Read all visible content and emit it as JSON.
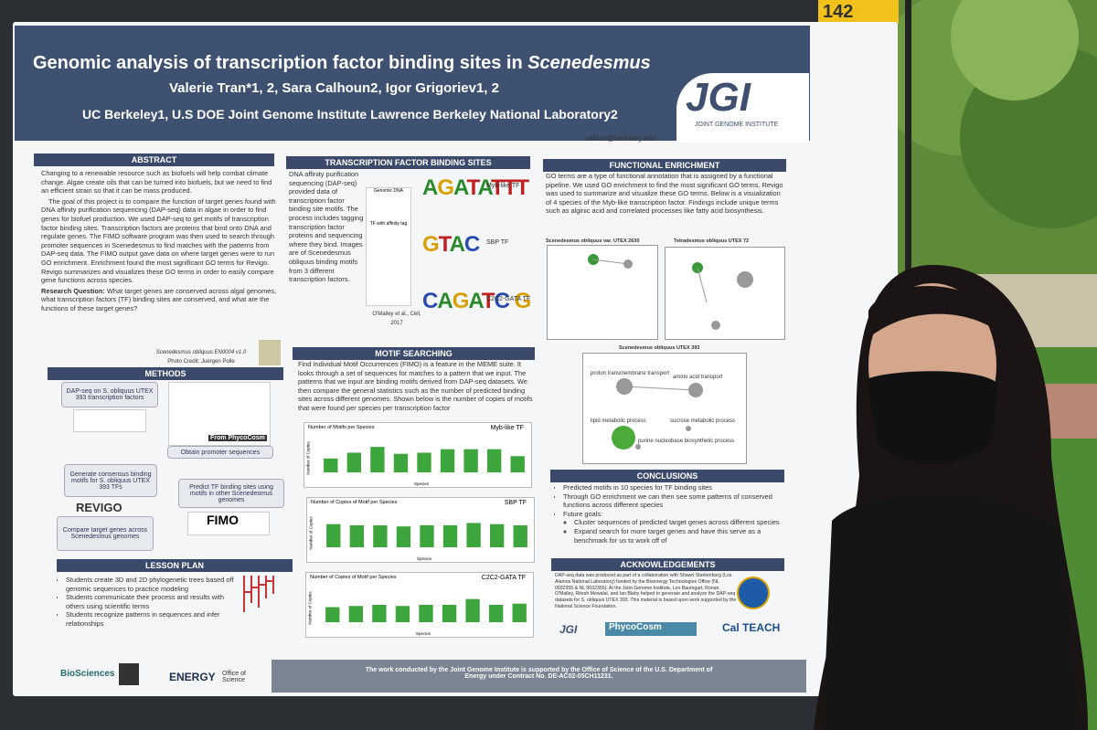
{
  "poster": {
    "number": "142",
    "title": "Genomic analysis of transcription factor binding sites in",
    "title_species": "Scenedesmus",
    "authors": "Valerie Tran*1, 2, Sara Calhoun2, Igor Grigoriev1, 2",
    "affiliations": "UC Berkeley1, U.S DOE Joint Genome Institute Lawrence Berkeley National Laboratory2",
    "email": "valtran@berkeley.edu",
    "logo": "JGI",
    "logo_sub": "JOINT GENOME INSTITUTE",
    "abstract": {
      "heading": "ABSTRACT",
      "paragraphs": [
        "Changing to a renewable resource such as biofuels will help combat climate change. Algae create oils that can be turned into biofuels, but we need to find an efficient strain so that it can be mass produced.",
        "The goal of this project is to compare the function of target genes found with DNA affinity purification sequencing (DAP-seq) data in algae in order to find genes for biofuel production. We used DAP-seq to get motifs of transcription factor binding sites. Transcription factors are proteins that bind onto DNA and regulate genes. The FIMO software program was then used to search through promoter sequences in Scenedesmus to find matches with the patterns from DAP-seq data. The FIMO output gave data on where target genes were to run GO enrichment. Enrichment found the most significant GO terms for Revigo. Revigo summarizes and visualizes these GO terms in order to easily compare gene functions across species."
      ],
      "question_label": "Research Question:",
      "question": "What target genes are conserved across algal genomes, what transcription factors (TF) binding sites are conserved, and what are the functions of these target genes?",
      "caption": "Scenedesmus obliquus EN0004 v1.0",
      "credit": "Photo Credit: Juergen Polle"
    },
    "methods": {
      "heading": "METHODS",
      "steps": [
        "DAP-seq on S. obliquus UTEX 393 transcription factors",
        "Obtain promoter sequences",
        "Generate consensus binding motifs for S. obliquus UTEX 393 TFs",
        "Predict TF binding sites using motifs in other Scenedesmus genomes",
        "Compare target genes across Scenedesmus genomes"
      ],
      "tools": [
        "REVIGO",
        "FIMO",
        "From PhycoCosm"
      ]
    },
    "lesson": {
      "heading": "LESSON PLAN",
      "items": [
        "Students create 3D and 2D phylogenetic trees based off genomic sequences to practice modeling",
        "Students communicate their process and results with others using scientific terms",
        "Students recognize patterns in sequences and infer relationships"
      ]
    },
    "tfbs": {
      "heading": "TRANSCRIPTION FACTOR BINDING SITES",
      "text": "DNA affinity purification sequencing (DAP-seq) provided data of transcription factor binding site motifs. The process includes tagging transcription factor proteins and sequencing where they bind. Images are of Scenedesmus obliquus binding motifs from 3 different transcription factors.",
      "figure_label": "Genomic DNA",
      "figure_label2": "TF with affinity tag",
      "citation": "O'Malley et al., Cell, 2017",
      "motifs": [
        {
          "seq": "AGATATTT",
          "name": "Myb-like TF"
        },
        {
          "seq": "GTAC",
          "name": "SBP TF"
        },
        {
          "seq": "CAGATC G",
          "name": "C2C2-GATA TF"
        }
      ]
    },
    "motif": {
      "heading": "MOTIF SEARCHING",
      "text": "Find Individual Motif Occurrences (FIMO) is a feature in the MEME suite. It looks through a set of sequences for matches to a pattern that we input. The patterns that we input are binding motifs derived from DAP-seq datasets. We then compare the general statistics such as the number of predicted binding sites across different genomes. Shown below is the number of copies of motifs that were found per species per transcription factor"
    },
    "enrichment": {
      "heading": "FUNCTIONAL ENRICHMENT",
      "text": "GO terms are a type of functional annotation that is assigned by a functional pipeline. We used GO enrichment to find the most significant GO terms. Revigo was used to summarize and visualize these GO terms. Below is a visualization of 4 species of the Myb-like transcription factor. Findings include unique terms such as alginic acid and correlated processes like fatty acid biosynthesis.",
      "plots": [
        {
          "title": "Scenedesmus obliquus var. UTEX 2630"
        },
        {
          "title": "Tetradesmus obliquus UTEX 72"
        },
        {
          "title": "Scenedesmus obliquus UTEX 393",
          "terms": [
            "proton transmembrane transport",
            "amino acid transport",
            "lipid metabolic process",
            "sucrose metabolic process",
            "purine nucleobase biosynthetic process"
          ]
        }
      ]
    },
    "conclusions": {
      "heading": "CONCLUSIONS",
      "items": [
        "Predicted motifs in 10 species for TF binding sites",
        "Through GO enrichment we can then see some patterns of conserved functions across different species",
        "Future goals:",
        "Cluster sequences of predicted target genes across different species",
        "Expand search for more target genes and have this serve as a benchmark for us to work off of"
      ]
    },
    "ack": {
      "heading": "ACKNOWLEDGEMENTS",
      "text": "DAP-seq data was produced as part of a collaboration with Shawn Starkenburg (Los Alamos National Laboratory) funded by the Bioenergy Technologies Office (NL 0032355 & NL 0032355). At the Joint Genome Institute, Leo Baumgart, Ronan O'Malley, Ritesh Mewalal, and Ian Blaby helped to generate and analyze the DAP-seq datasets for S. obliquus UTEX 393. This material is based upon work supported by the National Science Foundation.",
      "logos": [
        "JGI",
        "PhycoCosm",
        "Cal TEACH"
      ]
    },
    "footer": {
      "logos": [
        "BioSciences",
        "ENERGY",
        "Office of Science"
      ],
      "text": "The work conducted by the Joint Genome Institute is supported by the Office of Science of the U.S. Department of Energy under Contract No. DE-AC02-05CH11231."
    }
  },
  "chart_data": [
    {
      "type": "bar",
      "title": "Number of Motifs per Species",
      "series_name": "Myb-like TF",
      "ylabel": "Number of Copies",
      "xlabel": "Species",
      "color": "#3ca53c",
      "values": [
        12,
        17,
        22,
        16,
        17,
        20,
        20,
        20,
        14
      ],
      "ylim": [
        0,
        30
      ]
    },
    {
      "type": "bar",
      "title": "Number of Copies of Motif per Species",
      "series_name": "SBP TF",
      "ylabel": "Number of Copies",
      "xlabel": "Species",
      "color": "#3ca53c",
      "values": [
        20,
        19,
        19,
        18,
        19,
        19,
        21,
        20,
        19
      ],
      "ylim": [
        0,
        30
      ]
    },
    {
      "type": "bar",
      "title": "Number of Copies of Motif per Species",
      "series_name": "C2C2-GATA TF",
      "ylabel": "Number of Copies",
      "xlabel": "Species",
      "color": "#3ca53c",
      "values": [
        13,
        14,
        15,
        14,
        15,
        15,
        20,
        15,
        16
      ],
      "ylim": [
        0,
        30
      ]
    }
  ]
}
